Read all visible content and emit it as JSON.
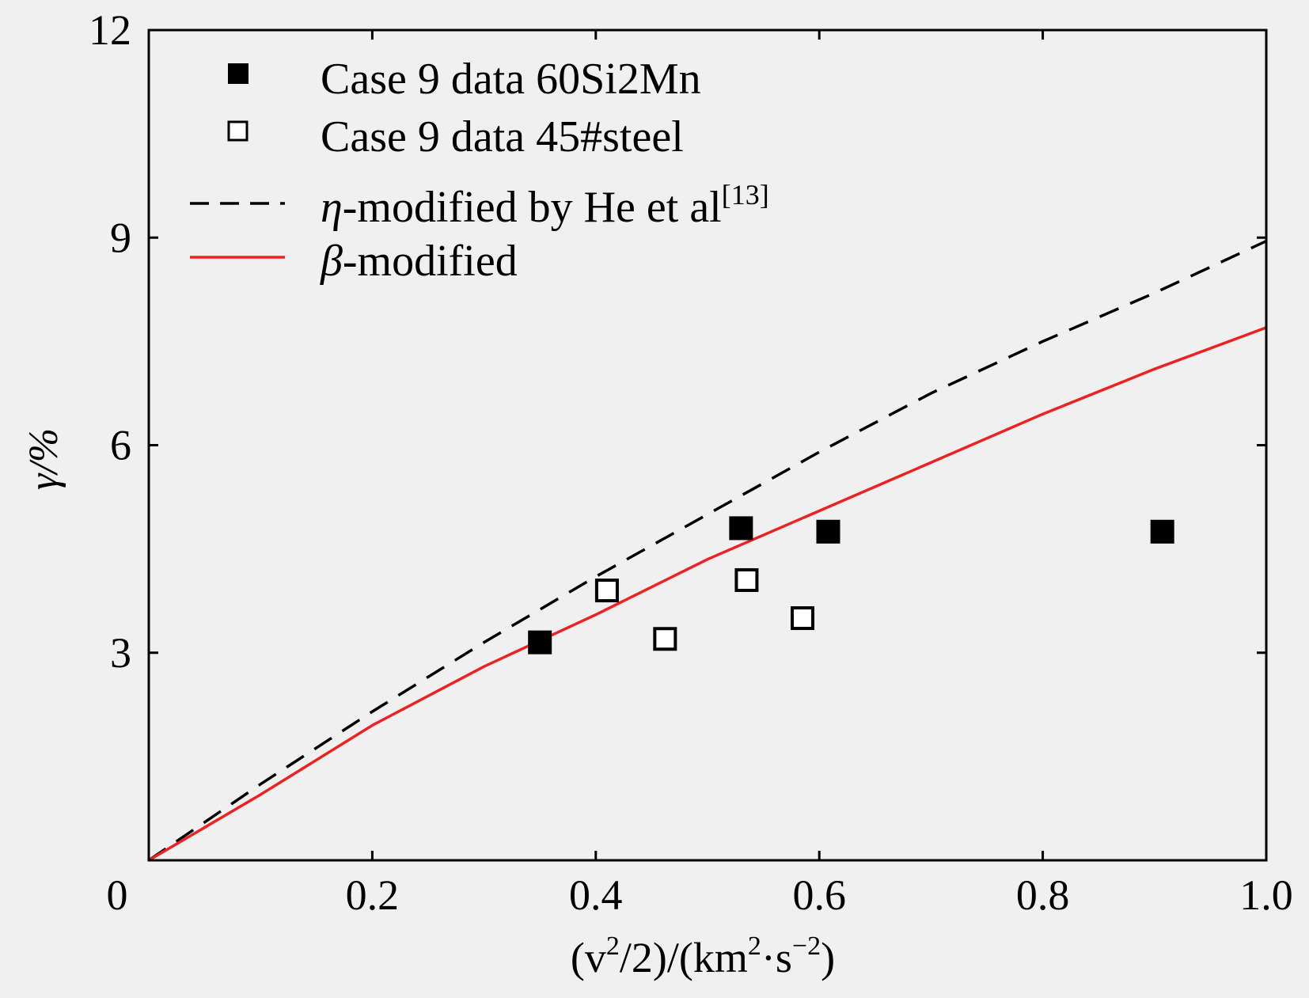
{
  "chart_data": {
    "type": "scatter",
    "xlim": [
      0,
      1.0
    ],
    "ylim": [
      0,
      12
    ],
    "xticks": [
      0.2,
      0.4,
      0.6,
      0.8,
      1.0
    ],
    "xtick_labels": [
      "0.2",
      "0.4",
      "0.6",
      "0.8",
      "1.0"
    ],
    "yticks": [
      3,
      6,
      9,
      12
    ],
    "ytick_labels": [
      "3",
      "6",
      "9",
      "12"
    ],
    "origin_label": "0",
    "xlabel": {
      "pre": "(v",
      "sup1": "2",
      "mid": "/2)/(km",
      "sup2": "2",
      "dot": "·s",
      "sup3": "−2",
      "post": ")"
    },
    "ylabel": "γ/%",
    "grid": false,
    "legend_position": "top-left",
    "series": [
      {
        "name": "Case 9 data 60Si2Mn",
        "kind": "scatter",
        "marker": "filled-square",
        "color": "#000000",
        "x": [
          0.35,
          0.53,
          0.608,
          0.907
        ],
        "y": [
          3.15,
          4.8,
          4.75,
          4.75
        ]
      },
      {
        "name": "Case 9 data 45#steel",
        "kind": "scatter",
        "marker": "open-square",
        "color": "#000000",
        "x": [
          0.41,
          0.462,
          0.535,
          0.585
        ],
        "y": [
          3.9,
          3.2,
          4.05,
          3.5
        ]
      },
      {
        "name": "η-modified by He et al[13]",
        "legend_symbol": "η",
        "legend_text": "-modified by He et al",
        "legend_sup": "[13]",
        "kind": "line",
        "style": "dashed",
        "color": "#000000",
        "x": [
          0,
          0.1,
          0.2,
          0.3,
          0.4,
          0.5,
          0.6,
          0.7,
          0.8,
          0.9,
          1.0
        ],
        "y": [
          0,
          1.1,
          2.15,
          3.15,
          4.1,
          5.0,
          5.9,
          6.75,
          7.5,
          8.2,
          8.95
        ]
      },
      {
        "name": "β-modified",
        "legend_symbol": "β",
        "legend_text": "-modified",
        "kind": "line",
        "style": "solid",
        "color": "#ee2222",
        "x": [
          0,
          0.1,
          0.2,
          0.3,
          0.4,
          0.5,
          0.6,
          0.7,
          0.8,
          0.9,
          1.0
        ],
        "y": [
          0,
          0.95,
          1.95,
          2.8,
          3.55,
          4.35,
          5.05,
          5.75,
          6.45,
          7.1,
          7.7
        ]
      }
    ]
  }
}
